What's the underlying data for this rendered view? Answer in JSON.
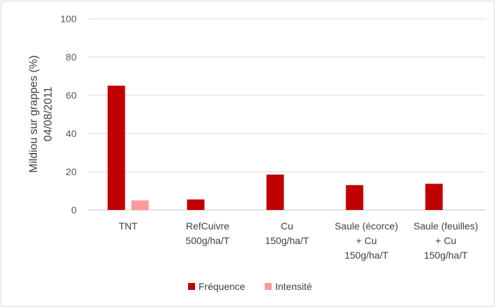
{
  "chart_data": {
    "type": "bar",
    "ylabel_lines": [
      "Mildiou sur grappes (%)",
      "04/08/2011"
    ],
    "ylim": [
      0,
      100
    ],
    "yticks": [
      "0",
      "20",
      "40",
      "60",
      "80",
      "100"
    ],
    "categories": [
      [
        "TNT"
      ],
      [
        "RefCuivre",
        "500g/ha/T"
      ],
      [
        "Cu",
        "150g/ha/T"
      ],
      [
        "Saule (écorce)",
        "+ Cu",
        "150g/ha/T"
      ],
      [
        "Saule (feuilles)",
        "+ Cu",
        "150g/ha/T"
      ]
    ],
    "series": [
      {
        "name": "Fréquence",
        "color": "#c00000",
        "values": [
          65,
          5.5,
          18.5,
          13,
          13.7
        ]
      },
      {
        "name": "Intensité",
        "color": "#ff9999",
        "values": [
          5,
          0,
          0,
          0,
          0
        ]
      }
    ],
    "grid": true,
    "legend_position": "bottom"
  }
}
